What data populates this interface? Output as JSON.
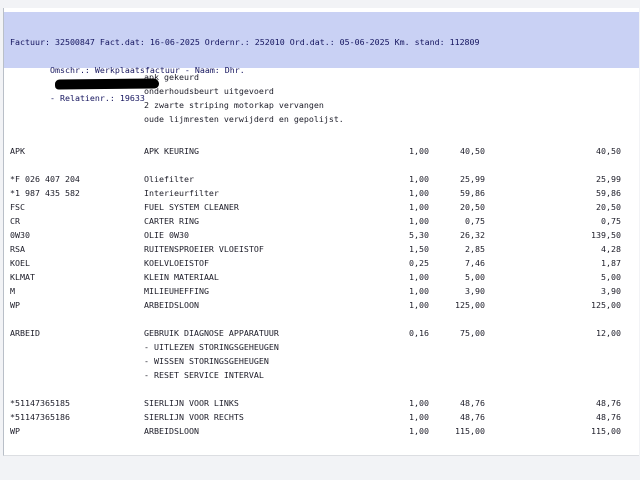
{
  "colors": {
    "header_band": "#c9d1f4",
    "header_text": "#15155f",
    "body_text": "#1c1c28",
    "page_background": "#f2f3f6",
    "document_background": "#ffffff",
    "redaction_bar": "#000000"
  },
  "invoice_header": {
    "line1": "Factuur: 32500847 Fact.dat: 16-06-2025 Ordernr.: 252010 Ord.dat.: 05-06-2025 Km. stand: 112809",
    "line2_before_redaction": "Omschr.: Werkplaatsfactuur - Naam: Dhr.",
    "line2_after_redaction": "- Relatienr.: 19633",
    "fields": {
      "factuur": "32500847",
      "fact_dat": "16-06-2025",
      "ordernr": "252010",
      "ord_dat": "05-06-2025",
      "km_stand": "112809",
      "omschr": "Werkplaatsfactuur",
      "relatienr": "19633"
    }
  },
  "work_notes": [
    "apk gekeurd",
    "onderhoudsbeurt uitgevoerd",
    "2 zwarte striping motorkap vervangen",
    "oude lijmresten verwijderd en gepolijst."
  ],
  "line_items": [
    {
      "code": "APK",
      "description": "APK KEURING",
      "qty": "1,00",
      "price": "40,50",
      "total": "40,50"
    },
    {
      "blank": true
    },
    {
      "code": "*F 026 407 204",
      "description": "Oliefilter",
      "qty": "1,00",
      "price": "25,99",
      "total": "25,99"
    },
    {
      "code": "*1 987 435 582",
      "description": "Interieurfilter",
      "qty": "1,00",
      "price": "59,86",
      "total": "59,86"
    },
    {
      "code": "FSC",
      "description": "FUEL SYSTEM CLEANER",
      "qty": "1,00",
      "price": "20,50",
      "total": "20,50"
    },
    {
      "code": "CR",
      "description": "CARTER RING",
      "qty": "1,00",
      "price": "0,75",
      "total": "0,75"
    },
    {
      "code": "0W30",
      "description": "OLIE 0W30",
      "qty": "5,30",
      "price": "26,32",
      "total": "139,50"
    },
    {
      "code": "RSA",
      "description": "RUITENSPROEIER VLOEISTOF",
      "qty": "1,50",
      "price": "2,85",
      "total": "4,28"
    },
    {
      "code": "KOEL",
      "description": "KOELVLOEISTOF",
      "qty": "0,25",
      "price": "7,46",
      "total": "1,87"
    },
    {
      "code": "KLMAT",
      "description": "KLEIN MATERIAAL",
      "qty": "1,00",
      "price": "5,00",
      "total": "5,00"
    },
    {
      "code": "M",
      "description": "MILIEUHEFFING",
      "qty": "1,00",
      "price": "3,90",
      "total": "3,90"
    },
    {
      "code": "WP",
      "description": "ARBEIDSLOON",
      "qty": "1,00",
      "price": "125,00",
      "total": "125,00"
    },
    {
      "blank": true
    },
    {
      "code": "ARBEID",
      "description": "GEBRUIK DIAGNOSE APPARATUUR",
      "qty": "0,16",
      "price": "75,00",
      "total": "12,00"
    },
    {
      "code": "",
      "description": "- UITLEZEN STORINGSGEHEUGEN",
      "qty": "",
      "price": "",
      "total": ""
    },
    {
      "code": "",
      "description": "- WISSEN STORINGSGEHEUGEN",
      "qty": "",
      "price": "",
      "total": ""
    },
    {
      "code": "",
      "description": "- RESET SERVICE INTERVAL",
      "qty": "",
      "price": "",
      "total": ""
    },
    {
      "blank": true
    },
    {
      "code": "*51147365185",
      "description": "SIERLIJN VOOR LINKS",
      "qty": "1,00",
      "price": "48,76",
      "total": "48,76"
    },
    {
      "code": "*51147365186",
      "description": "SIERLIJN VOOR RECHTS",
      "qty": "1,00",
      "price": "48,76",
      "total": "48,76"
    },
    {
      "code": "WP",
      "description": "ARBEIDSLOON",
      "qty": "1,00",
      "price": "115,00",
      "total": "115,00"
    }
  ]
}
